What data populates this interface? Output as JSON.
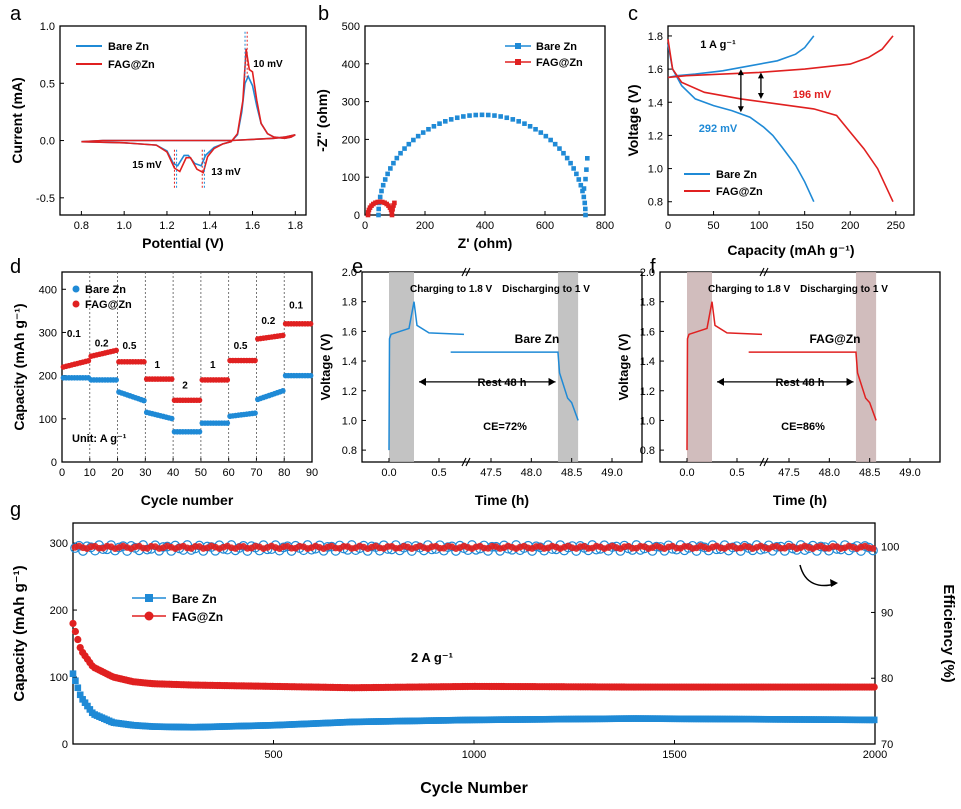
{
  "colors": {
    "blue": "#1f8ad6",
    "red": "#e02020",
    "axis": "#000000",
    "shade": "#b8b8b8",
    "shade_pink": "#c9b1b1"
  },
  "chart_data": [
    {
      "panel": "a",
      "type": "line",
      "xlabel": "Potential (V)",
      "ylabel": "Current (mA)",
      "xlim": [
        0.7,
        1.85
      ],
      "ylim": [
        -0.65,
        1.0
      ],
      "xticks": [
        "0.8",
        "1.0",
        "1.2",
        "1.4",
        "1.6",
        "1.8"
      ],
      "yticks": [
        "-0.5",
        "0.0",
        "0.5",
        "1.0"
      ],
      "annotations": [
        "10 mV",
        "15 mV",
        "13 mV"
      ],
      "series": [
        {
          "name": "Bare Zn",
          "color": "#1f8ad6",
          "x": [
            0.8,
            1.0,
            1.15,
            1.2,
            1.23,
            1.25,
            1.28,
            1.3,
            1.33,
            1.36,
            1.38,
            1.42,
            1.46,
            1.5,
            1.53,
            1.55,
            1.565,
            1.58,
            1.6,
            1.62,
            1.64,
            1.67,
            1.7,
            1.75,
            1.78,
            1.8,
            1.75,
            1.7,
            1.6,
            1.5,
            1.4,
            1.3,
            1.2,
            1.1,
            1.0,
            0.9,
            0.8
          ],
          "y": [
            -0.01,
            -0.02,
            -0.04,
            -0.09,
            -0.2,
            -0.22,
            -0.13,
            -0.13,
            -0.2,
            -0.22,
            -0.13,
            -0.06,
            -0.03,
            -0.01,
            0.05,
            0.25,
            0.5,
            0.56,
            0.48,
            0.3,
            0.15,
            0.06,
            0.03,
            0.02,
            0.03,
            0.05,
            0.03,
            0.02,
            0.01,
            0.0,
            0.0,
            0.0,
            0.0,
            0.0,
            0.0,
            0.0,
            -0.01
          ]
        },
        {
          "name": "FAG@Zn",
          "color": "#e02020",
          "x": [
            0.8,
            1.0,
            1.15,
            1.2,
            1.235,
            1.26,
            1.29,
            1.31,
            1.34,
            1.37,
            1.39,
            1.42,
            1.46,
            1.5,
            1.53,
            1.555,
            1.57,
            1.585,
            1.6,
            1.62,
            1.64,
            1.67,
            1.7,
            1.75,
            1.78,
            1.8,
            1.75,
            1.7,
            1.6,
            1.5,
            1.4,
            1.3,
            1.2,
            1.1,
            1.0,
            0.9,
            0.8
          ],
          "y": [
            -0.01,
            -0.02,
            -0.04,
            -0.1,
            -0.24,
            -0.27,
            -0.15,
            -0.15,
            -0.25,
            -0.28,
            -0.14,
            -0.07,
            -0.03,
            -0.01,
            0.06,
            0.35,
            0.8,
            0.62,
            0.6,
            0.35,
            0.15,
            0.06,
            0.03,
            0.02,
            0.03,
            0.05,
            0.03,
            0.02,
            0.01,
            0.0,
            0.0,
            0.0,
            0.0,
            0.0,
            0.0,
            0.0,
            -0.01
          ]
        }
      ]
    },
    {
      "panel": "b",
      "type": "scatter",
      "xlabel": "Z' (ohm)",
      "ylabel": "-Z'' (ohm)",
      "xlim": [
        0,
        800
      ],
      "ylim": [
        0,
        500
      ],
      "xticks": [
        "0",
        "200",
        "400",
        "600",
        "800"
      ],
      "yticks": [
        "0",
        "100",
        "200",
        "300",
        "400",
        "500"
      ],
      "series": [
        {
          "name": "Bare Zn",
          "color": "#1f8ad6"
        },
        {
          "name": "FAG@Zn",
          "color": "#e02020"
        }
      ]
    },
    {
      "panel": "c",
      "type": "line",
      "xlabel": "Capacity (mAh g⁻¹)",
      "ylabel": "Voltage (V)",
      "xlim": [
        0,
        270
      ],
      "ylim": [
        0.72,
        1.86
      ],
      "xticks": [
        "0",
        "50",
        "100",
        "150",
        "200",
        "250"
      ],
      "yticks": [
        "0.8",
        "1.0",
        "1.2",
        "1.4",
        "1.6",
        "1.8"
      ],
      "annotations": [
        "1 A g⁻¹",
        "196 mV",
        "292 mV"
      ],
      "series": [
        {
          "name": "Bare Zn charge",
          "color": "#1f8ad6",
          "x": [
            0,
            10,
            30,
            60,
            90,
            120,
            140,
            150,
            160
          ],
          "y": [
            1.55,
            1.56,
            1.57,
            1.59,
            1.62,
            1.65,
            1.69,
            1.73,
            1.8
          ]
        },
        {
          "name": "Bare Zn discharge",
          "color": "#1f8ad6",
          "x": [
            0,
            5,
            15,
            30,
            50,
            70,
            90,
            105,
            115,
            125,
            140,
            150,
            160
          ],
          "y": [
            1.75,
            1.6,
            1.5,
            1.42,
            1.38,
            1.35,
            1.31,
            1.25,
            1.2,
            1.13,
            1.02,
            0.92,
            0.8
          ]
        },
        {
          "name": "FAG@Zn charge",
          "color": "#e02020",
          "x": [
            0,
            20,
            60,
            100,
            150,
            200,
            220,
            235,
            247
          ],
          "y": [
            1.55,
            1.56,
            1.57,
            1.58,
            1.6,
            1.63,
            1.67,
            1.72,
            1.8
          ]
        },
        {
          "name": "FAG@Zn discharge",
          "color": "#e02020",
          "x": [
            0,
            5,
            15,
            40,
            80,
            120,
            160,
            185,
            200,
            215,
            230,
            247
          ],
          "y": [
            1.78,
            1.6,
            1.52,
            1.46,
            1.42,
            1.39,
            1.36,
            1.32,
            1.22,
            1.12,
            1.0,
            0.8
          ]
        }
      ]
    },
    {
      "panel": "d",
      "type": "scatter",
      "xlabel": "Cycle number",
      "ylabel": "Capacity (mAh g⁻¹)",
      "xlim": [
        0,
        90
      ],
      "ylim": [
        0,
        440
      ],
      "xticks": [
        "0",
        "10",
        "20",
        "30",
        "40",
        "50",
        "60",
        "70",
        "80",
        "90"
      ],
      "yticks": [
        "0",
        "100",
        "200",
        "300",
        "400"
      ],
      "unit_label": "Unit: A g⁻¹",
      "rate_labels": [
        "0.1",
        "0.2",
        "0.5",
        "1",
        "2",
        "1",
        "0.5",
        "0.2",
        "0.1"
      ],
      "segment_values": {
        "Bare Zn": [
          195,
          190,
          150,
          105,
          70,
          90,
          110,
          160,
          200
        ],
        "FAG@Zn": [
          225,
          255,
          232,
          192,
          143,
          190,
          235,
          290,
          320
        ]
      },
      "series": [
        {
          "name": "Bare Zn",
          "color": "#1f8ad6"
        },
        {
          "name": "FAG@Zn",
          "color": "#e02020"
        }
      ]
    },
    {
      "panel": "e",
      "type": "line",
      "xlabel": "Time (h)",
      "ylabel": "Voltage (V)",
      "ylim": [
        0.72,
        2.0
      ],
      "yticks": [
        "0.8",
        "1.0",
        "1.2",
        "1.4",
        "1.6",
        "1.8",
        "2.0"
      ],
      "xticks": [
        "0.0",
        "0.5",
        "47.5",
        "48.0",
        "48.5",
        "49.0"
      ],
      "texts": [
        "Charging to 1.8 V",
        "Discharging to 1 V",
        "Bare Zn",
        "Rest 48 h",
        "CE=72%"
      ],
      "series": [
        {
          "name": "Bare Zn",
          "color": "#1f8ad6"
        }
      ]
    },
    {
      "panel": "f",
      "type": "line",
      "xlabel": "Time (h)",
      "ylabel": "Voltage (V)",
      "ylim": [
        0.72,
        2.0
      ],
      "yticks": [
        "0.8",
        "1.0",
        "1.2",
        "1.4",
        "1.6",
        "1.8",
        "2.0"
      ],
      "xticks": [
        "0.0",
        "0.5",
        "47.5",
        "48.0",
        "48.5",
        "49.0"
      ],
      "texts": [
        "Charging to 1.8 V",
        "Discharging to 1 V",
        "FAG@Zn",
        "Rest 48 h",
        "CE=86%"
      ],
      "series": [
        {
          "name": "FAG@Zn",
          "color": "#e02020"
        }
      ]
    },
    {
      "panel": "g",
      "type": "scatter",
      "xlabel": "Cycle Number",
      "ylabel": "Capacity (mAh g⁻¹)",
      "y2label": "Efficiency (%)",
      "xlim": [
        0,
        2000
      ],
      "ylim": [
        0,
        330
      ],
      "y2lim": [
        70,
        103.6
      ],
      "xticks": [
        "500",
        "1000",
        "1500",
        "2000"
      ],
      "yticks": [
        "0",
        "100",
        "200",
        "300"
      ],
      "y2ticks": [
        "70",
        "80",
        "90",
        "100"
      ],
      "annotation": "2 A  g⁻¹",
      "series": [
        {
          "name": "Bare Zn",
          "color": "#1f8ad6",
          "efficiency": 99.8,
          "capacity_x": [
            0,
            20,
            50,
            100,
            150,
            200,
            300,
            500,
            700,
            1000,
            1400,
            1700,
            2000
          ],
          "capacity_y": [
            105,
            70,
            45,
            32,
            28,
            26,
            25,
            28,
            33,
            36,
            38,
            37,
            36
          ]
        },
        {
          "name": "FAG@Zn",
          "color": "#e02020",
          "efficiency": 99.9,
          "capacity_x": [
            0,
            20,
            50,
            100,
            150,
            200,
            300,
            500,
            700,
            1000,
            1400,
            1700,
            2000
          ],
          "capacity_y": [
            180,
            140,
            115,
            100,
            93,
            90,
            88,
            86,
            84,
            86,
            85,
            85,
            85
          ]
        }
      ]
    }
  ]
}
